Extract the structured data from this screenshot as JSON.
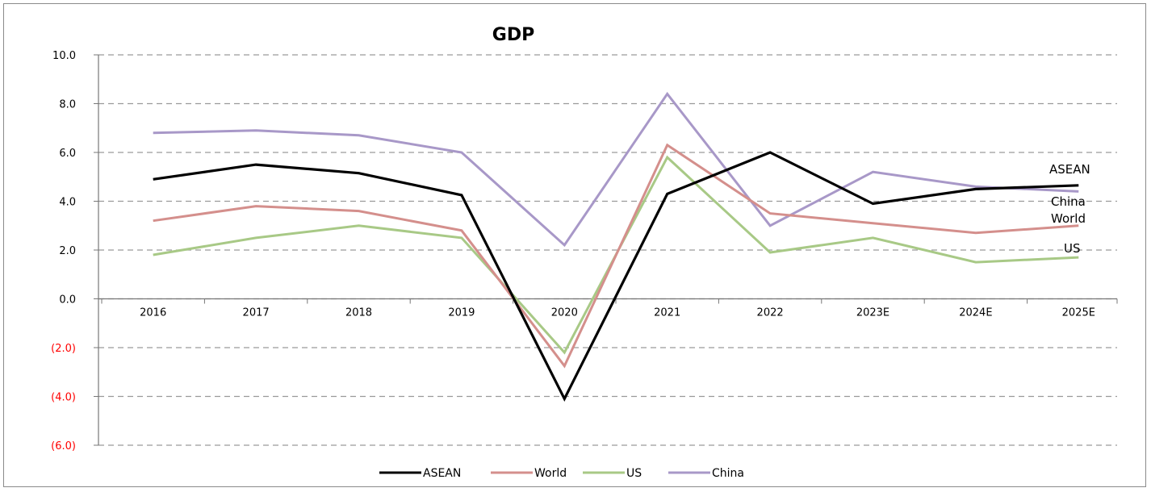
{
  "chart_data": {
    "type": "line",
    "title": "GDP",
    "categories": [
      "2016",
      "2017",
      "2018",
      "2019",
      "2020",
      "2021",
      "2022",
      "2023E",
      "2024E",
      "2025E"
    ],
    "ylim": [
      -6,
      10
    ],
    "yticks": [
      10,
      8,
      6,
      4,
      2,
      0,
      -2,
      -4,
      -6
    ],
    "ytick_labels": [
      "10.0",
      "8.0",
      "6.0",
      "4.0",
      "2.0",
      "0.0",
      "(2.0)",
      "(4.0)",
      "(6.0)"
    ],
    "negative_tick_color": "#ff0000",
    "grid": "dashed horizontal",
    "legend_position": "bottom",
    "series": [
      {
        "name": "ASEAN",
        "color": "#000000",
        "values": [
          4.9,
          5.5,
          5.15,
          4.25,
          -4.1,
          4.3,
          6.0,
          3.9,
          4.5,
          4.65
        ]
      },
      {
        "name": "World",
        "color": "#d48f8c",
        "values": [
          3.2,
          3.8,
          3.6,
          2.8,
          -2.75,
          6.3,
          3.5,
          3.1,
          2.7,
          3.0
        ]
      },
      {
        "name": "US",
        "color": "#a8c986",
        "values": [
          1.8,
          2.5,
          3.0,
          2.5,
          -2.2,
          5.8,
          1.9,
          2.5,
          1.5,
          1.7
        ]
      },
      {
        "name": "China",
        "color": "#a898c8",
        "values": [
          6.8,
          6.9,
          6.7,
          6.0,
          2.2,
          8.4,
          3.0,
          5.2,
          4.6,
          4.4
        ]
      }
    ],
    "end_labels": [
      "ASEAN",
      "China",
      "World",
      "US"
    ]
  }
}
